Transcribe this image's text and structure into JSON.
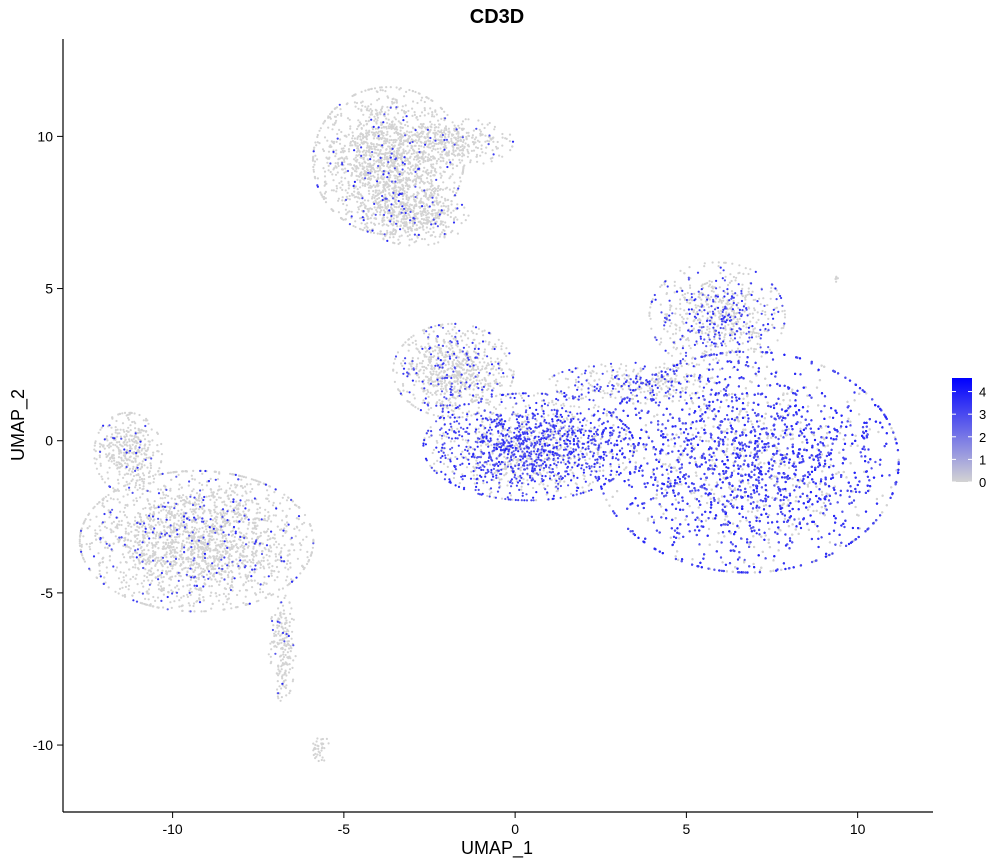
{
  "chart_data": {
    "type": "scatter",
    "title": "CD3D",
    "xlabel": "UMAP_1",
    "ylabel": "UMAP_2",
    "xlim": [
      -13.2,
      12.2
    ],
    "ylim": [
      -12.2,
      13.2
    ],
    "x_ticks": [
      -10,
      -5,
      0,
      5,
      10
    ],
    "x_tick_labels": [
      "-10",
      "-5",
      "0",
      "5",
      "10"
    ],
    "y_ticks": [
      -10,
      -5,
      0,
      5,
      10
    ],
    "y_tick_labels": [
      "-10",
      "-5",
      "0",
      "5",
      "10"
    ],
    "grid": false,
    "legend": {
      "placement": "right",
      "type": "colorbar",
      "min": 0,
      "max": 4.6,
      "ticks": [
        0,
        1,
        2,
        3,
        4
      ],
      "tick_labels": [
        "0",
        "1",
        "2",
        "3",
        "4"
      ],
      "low_color": "#d3d3d3",
      "high_color": "#0000ff"
    },
    "clusters": [
      {
        "id": "top",
        "cx": -3.7,
        "cy": 9.2,
        "sx": 1.0,
        "sy": 1.1,
        "n": 1700,
        "expr": 0.05
      },
      {
        "id": "top-tail",
        "cx": -1.6,
        "cy": 9.8,
        "sx": 0.7,
        "sy": 0.35,
        "n": 260,
        "expr": 0.05
      },
      {
        "id": "top-lower",
        "cx": -2.9,
        "cy": 7.4,
        "sx": 0.7,
        "sy": 0.45,
        "n": 420,
        "expr": 0.08
      },
      {
        "id": "left-arm",
        "cx": -11.3,
        "cy": -0.4,
        "sx": 0.45,
        "sy": 0.6,
        "n": 380,
        "expr": 0.04
      },
      {
        "id": "left-main",
        "cx": -9.3,
        "cy": -3.3,
        "sx": 1.55,
        "sy": 1.05,
        "n": 2400,
        "expr": 0.09
      },
      {
        "id": "left-strand",
        "cx": -6.8,
        "cy": -6.8,
        "sx": 0.18,
        "sy": 0.8,
        "n": 200,
        "expr": 0.05
      },
      {
        "id": "left-tiny",
        "cx": -5.7,
        "cy": -10.1,
        "sx": 0.15,
        "sy": 0.2,
        "n": 35,
        "expr": 0.0
      },
      {
        "id": "mid-grey",
        "cx": -1.8,
        "cy": 2.3,
        "sx": 0.8,
        "sy": 0.7,
        "n": 800,
        "expr": 0.15
      },
      {
        "id": "mid-blob",
        "cx": 0.4,
        "cy": -0.2,
        "sx": 1.4,
        "sy": 0.8,
        "n": 1700,
        "expr": 0.6
      },
      {
        "id": "bridge",
        "cx": 3.6,
        "cy": 1.9,
        "sx": 1.2,
        "sy": 0.3,
        "n": 350,
        "expr": 0.35
      },
      {
        "id": "right-main",
        "cx": 6.8,
        "cy": -0.7,
        "sx": 2.0,
        "sy": 1.65,
        "n": 6500,
        "expr": 0.72
      },
      {
        "id": "right-top",
        "cx": 5.9,
        "cy": 4.1,
        "sx": 0.9,
        "sy": 0.8,
        "n": 700,
        "expr": 0.3
      },
      {
        "id": "right-edge",
        "cx": 9.4,
        "cy": 5.3,
        "sx": 0.05,
        "sy": 0.05,
        "n": 6,
        "expr": 0.0
      }
    ]
  }
}
